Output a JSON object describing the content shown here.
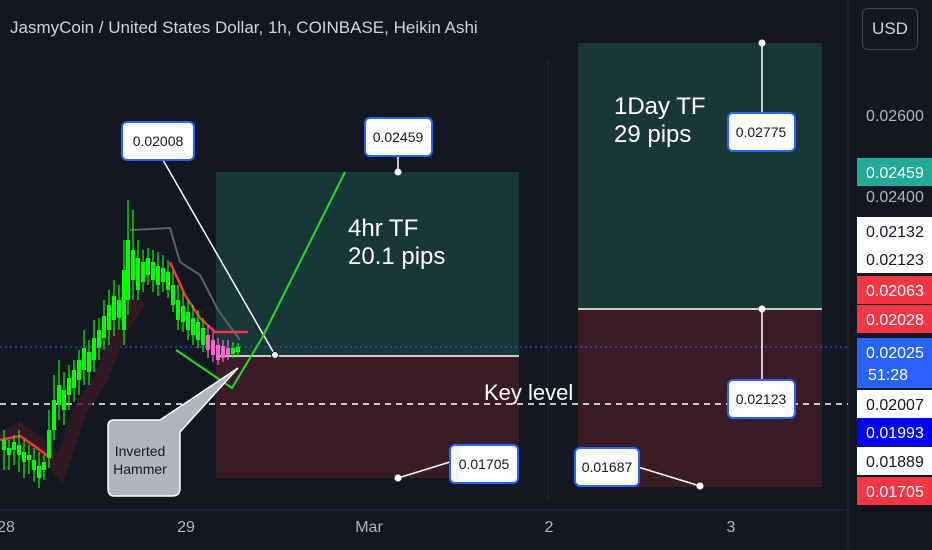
{
  "header": {
    "title": "JasmyCoin / United States Dollar, 1h, COINBASE, Heikin Ashi",
    "currency_button": "USD"
  },
  "chart_data": {
    "type": "candlestick",
    "symbol": "JasmyCoin / United States Dollar",
    "interval": "1h",
    "exchange": "COINBASE",
    "style": "Heikin Ashi",
    "x_tick_labels": [
      "28",
      "29",
      "Mar",
      "2",
      "3"
    ],
    "y_tick_labels": [
      "0.02600",
      "0.02400"
    ],
    "ylim": [
      0.0158,
      0.0289
    ],
    "current_price_line": 0.02025,
    "dashed_level": 0.02007,
    "annotations": {
      "four_hour": {
        "line1": "4hr TF",
        "line2": "20.1 pips"
      },
      "one_day": {
        "line1": "1Day TF",
        "line2": "29 pips"
      },
      "key_level": "Key level",
      "inverted_hammer": {
        "line1": "Inverted",
        "line2": "Hammer"
      }
    },
    "callouts": [
      "0.02008",
      "0.02459",
      "0.01705",
      "0.02775",
      "0.02123",
      "0.01687"
    ],
    "price_scale_labels": [
      {
        "value": "0.02459",
        "bg": "#22ab94",
        "fg": "#ffffff"
      },
      {
        "value": "0.02132",
        "bg": "#ffffff",
        "fg": "#131722"
      },
      {
        "value": "0.02123",
        "bg": "#ffffff",
        "fg": "#131722"
      },
      {
        "value": "0.02063",
        "bg": "#f23645",
        "fg": "#ffffff"
      },
      {
        "value": "0.02028",
        "bg": "#f23645",
        "fg": "#ffffff"
      },
      {
        "value": "0.02025",
        "bg": "#2962ff",
        "fg": "#ffffff",
        "sub": "51:28"
      },
      {
        "value": "0.02007",
        "bg": "#ffffff",
        "fg": "#131722"
      },
      {
        "value": "0.01993",
        "bg": "#0000ff",
        "fg": "#ffffff"
      },
      {
        "value": "0.01889",
        "bg": "#ffffff",
        "fg": "#131722"
      },
      {
        "value": "0.01705",
        "bg": "#f23645",
        "fg": "#ffffff"
      }
    ],
    "colors": {
      "background": "#131722",
      "bull_candle": "#00ff00",
      "bear_candle": "#ff66cc",
      "profit_zone": "#1b3b3b",
      "loss_zone": "#3f1d27",
      "current_price": "#2962ff"
    }
  }
}
